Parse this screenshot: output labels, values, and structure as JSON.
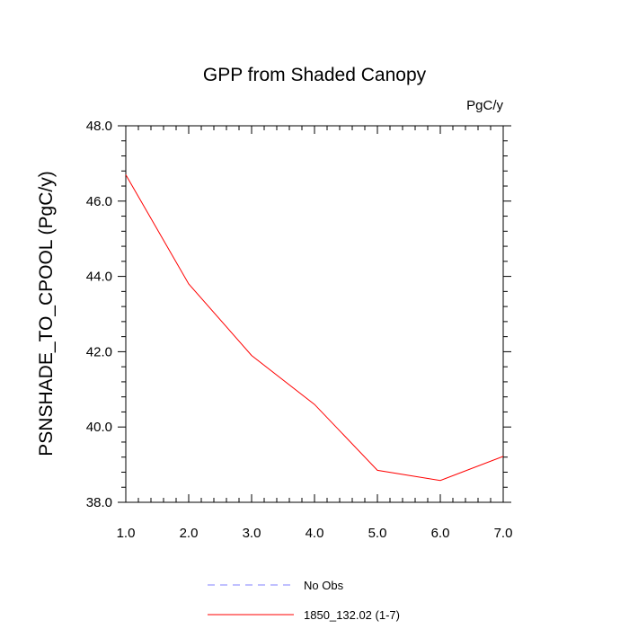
{
  "chart_data": {
    "type": "line",
    "title": "GPP from Shaded Canopy",
    "units_label": "PgC/y",
    "ylabel": "PSNSHADE_TO_CPOOL  (PgC/y)",
    "xlabel": "",
    "xlim": [
      1,
      7
    ],
    "ylim": [
      38,
      48
    ],
    "x_ticks": [
      1,
      2,
      3,
      4,
      5,
      6,
      7
    ],
    "x_tick_labels": [
      "1.0",
      "2.0",
      "3.0",
      "4.0",
      "5.0",
      "6.0",
      "7.0"
    ],
    "y_ticks": [
      38,
      40,
      42,
      44,
      46,
      48
    ],
    "y_tick_labels": [
      "38.0",
      "40.0",
      "42.0",
      "44.0",
      "46.0",
      "48.0"
    ],
    "grid": false,
    "legend_position": "bottom",
    "series": [
      {
        "name": "1850_132.02 (1-7)",
        "color": "#ff0000",
        "dash": "solid",
        "x": [
          1,
          2,
          3,
          4,
          5,
          6,
          7
        ],
        "values": [
          46.7,
          43.8,
          41.9,
          40.6,
          38.85,
          38.58,
          39.22
        ]
      }
    ],
    "legend": [
      {
        "label": "No Obs",
        "color": "#8080ff",
        "dash": "dashed"
      },
      {
        "label": "1850_132.02 (1-7)",
        "color": "#ff0000",
        "dash": "solid"
      }
    ]
  }
}
